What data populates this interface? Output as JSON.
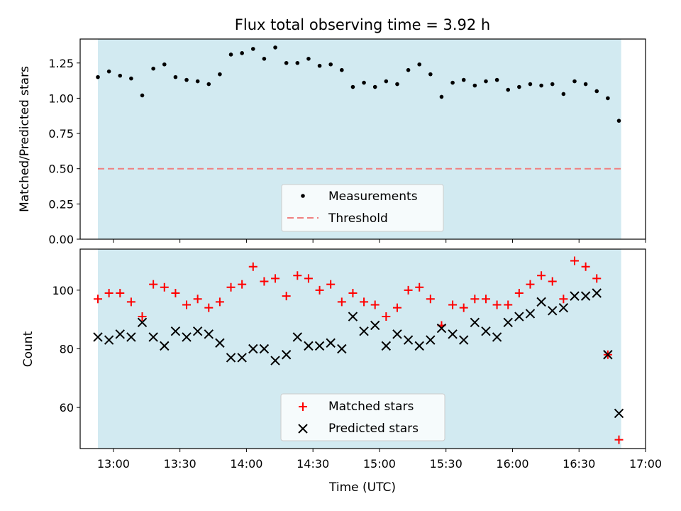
{
  "chart_data": [
    {
      "type": "scatter",
      "title": "Flux total observing time = 3.92 h",
      "ylabel": "Matched/Predicted stars",
      "xlabel": "",
      "xlim": [
        "12:45",
        "17:00"
      ],
      "ylim": [
        0,
        1.42
      ],
      "yticks": [
        0.0,
        0.25,
        0.5,
        0.75,
        1.0,
        1.25
      ],
      "ytick_labels": [
        "0.00",
        "0.25",
        "0.50",
        "0.75",
        "1.00",
        "1.25"
      ],
      "shaded_span": [
        "12:53",
        "16:49"
      ],
      "shade_color": "#add8e6",
      "grid": false,
      "legend_placement": "lower center",
      "series": [
        {
          "name": "Measurements",
          "marker": "dot",
          "color": "#000000",
          "x": [
            "12:53",
            "12:58",
            "13:03",
            "13:08",
            "13:13",
            "13:18",
            "13:23",
            "13:28",
            "13:33",
            "13:38",
            "13:43",
            "13:48",
            "13:53",
            "13:58",
            "14:03",
            "14:08",
            "14:13",
            "14:18",
            "14:23",
            "14:28",
            "14:33",
            "14:38",
            "14:43",
            "14:48",
            "14:53",
            "14:58",
            "15:03",
            "15:08",
            "15:13",
            "15:18",
            "15:23",
            "15:28",
            "15:33",
            "15:38",
            "15:43",
            "15:48",
            "15:53",
            "15:58",
            "16:03",
            "16:08",
            "16:13",
            "16:18",
            "16:23",
            "16:28",
            "16:33",
            "16:38",
            "16:43",
            "16:48"
          ],
          "y": [
            1.15,
            1.19,
            1.16,
            1.14,
            1.02,
            1.21,
            1.24,
            1.15,
            1.13,
            1.12,
            1.1,
            1.17,
            1.31,
            1.32,
            1.35,
            1.28,
            1.36,
            1.25,
            1.25,
            1.28,
            1.23,
            1.24,
            1.2,
            1.08,
            1.11,
            1.08,
            1.12,
            1.1,
            1.2,
            1.24,
            1.17,
            1.01,
            1.11,
            1.13,
            1.09,
            1.12,
            1.13,
            1.06,
            1.08,
            1.1,
            1.09,
            1.1,
            1.03,
            1.12,
            1.1,
            1.05,
            1.0,
            0.84
          ]
        },
        {
          "name": "Threshold",
          "line_style": "dashed",
          "color": "#f08080",
          "x": [
            "12:53",
            "16:49"
          ],
          "y": [
            0.5,
            0.5
          ]
        }
      ]
    },
    {
      "type": "scatter",
      "title": "",
      "ylabel": "Count",
      "xlabel": "Time (UTC)",
      "xlim": [
        "12:45",
        "17:00"
      ],
      "ylim": [
        46,
        114
      ],
      "yticks": [
        60,
        80,
        100
      ],
      "ytick_labels": [
        "60",
        "80",
        "100"
      ],
      "xticks": [
        "13:00",
        "13:30",
        "14:00",
        "14:30",
        "15:00",
        "15:30",
        "16:00",
        "16:30",
        "17:00"
      ],
      "shaded_span": [
        "12:53",
        "16:49"
      ],
      "shade_color": "#add8e6",
      "grid": false,
      "legend_placement": "lower center",
      "x": [
        "12:53",
        "12:58",
        "13:03",
        "13:08",
        "13:13",
        "13:18",
        "13:23",
        "13:28",
        "13:33",
        "13:38",
        "13:43",
        "13:48",
        "13:53",
        "13:58",
        "14:03",
        "14:08",
        "14:13",
        "14:18",
        "14:23",
        "14:28",
        "14:33",
        "14:38",
        "14:43",
        "14:48",
        "14:53",
        "14:58",
        "15:03",
        "15:08",
        "15:13",
        "15:18",
        "15:23",
        "15:28",
        "15:33",
        "15:38",
        "15:43",
        "15:48",
        "15:53",
        "15:58",
        "16:03",
        "16:08",
        "16:13",
        "16:18",
        "16:23",
        "16:28",
        "16:33",
        "16:38",
        "16:43",
        "16:48"
      ],
      "series": [
        {
          "name": "Matched stars",
          "marker": "plus",
          "color": "#ff0000",
          "values": [
            97,
            99,
            99,
            96,
            91,
            102,
            101,
            99,
            95,
            97,
            94,
            96,
            101,
            102,
            108,
            103,
            104,
            98,
            105,
            104,
            100,
            102,
            96,
            99,
            96,
            95,
            91,
            94,
            100,
            101,
            97,
            88,
            95,
            94,
            97,
            97,
            95,
            95,
            99,
            102,
            105,
            103,
            97,
            110,
            108,
            104,
            78,
            49
          ]
        },
        {
          "name": "Predicted stars",
          "marker": "x",
          "color": "#000000",
          "values": [
            84,
            83,
            85,
            84,
            89,
            84,
            81,
            86,
            84,
            86,
            85,
            82,
            77,
            77,
            80,
            80,
            76,
            78,
            84,
            81,
            81,
            82,
            80,
            91,
            86,
            88,
            81,
            85,
            83,
            81,
            83,
            87,
            85,
            83,
            89,
            86,
            84,
            89,
            91,
            92,
            96,
            93,
            94,
            98,
            98,
            99,
            78,
            58
          ]
        }
      ]
    }
  ]
}
